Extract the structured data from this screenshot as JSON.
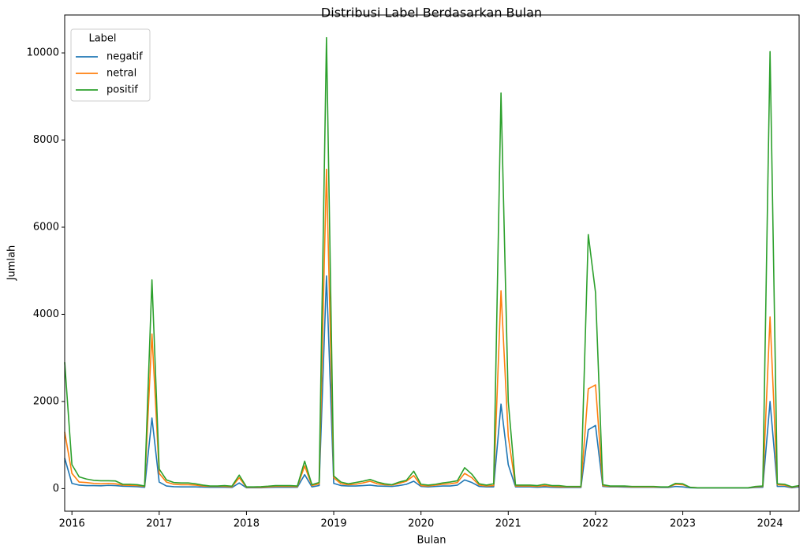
{
  "chart_data": {
    "type": "line",
    "title": "Distribusi Label Berdasarkan Bulan",
    "xlabel": "Bulan",
    "ylabel": "Jumlah",
    "legend_title": "Label",
    "legend": "upper left",
    "x": [
      2015.917,
      2016.0,
      2016.083,
      2016.167,
      2016.25,
      2016.333,
      2016.417,
      2016.5,
      2016.583,
      2016.667,
      2016.75,
      2016.833,
      2016.917,
      2017.0,
      2017.083,
      2017.167,
      2017.25,
      2017.333,
      2017.417,
      2017.5,
      2017.583,
      2017.667,
      2017.75,
      2017.833,
      2017.917,
      2018.0,
      2018.083,
      2018.167,
      2018.25,
      2018.333,
      2018.417,
      2018.5,
      2018.583,
      2018.667,
      2018.75,
      2018.833,
      2018.917,
      2019.0,
      2019.083,
      2019.167,
      2019.25,
      2019.333,
      2019.417,
      2019.5,
      2019.583,
      2019.667,
      2019.75,
      2019.833,
      2019.917,
      2020.0,
      2020.083,
      2020.167,
      2020.25,
      2020.333,
      2020.417,
      2020.5,
      2020.583,
      2020.667,
      2020.75,
      2020.833,
      2020.917,
      2021.0,
      2021.083,
      2021.167,
      2021.25,
      2021.333,
      2021.417,
      2021.5,
      2021.583,
      2021.667,
      2021.75,
      2021.833,
      2021.917,
      2022.0,
      2022.083,
      2022.167,
      2022.25,
      2022.333,
      2022.417,
      2022.5,
      2022.583,
      2022.667,
      2022.75,
      2022.833,
      2022.917,
      2023.0,
      2023.083,
      2023.167,
      2023.25,
      2023.333,
      2023.417,
      2023.5,
      2023.583,
      2023.667,
      2023.75,
      2023.833,
      2023.917,
      2024.0,
      2024.083,
      2024.167,
      2024.25,
      2024.333
    ],
    "series": [
      {
        "name": "negatif",
        "color": "#1f77b4",
        "values": [
          700,
          120,
          80,
          70,
          70,
          65,
          75,
          70,
          55,
          50,
          45,
          30,
          1620,
          150,
          60,
          45,
          40,
          40,
          40,
          35,
          30,
          30,
          30,
          25,
          130,
          20,
          20,
          20,
          25,
          30,
          30,
          30,
          30,
          320,
          40,
          70,
          4880,
          120,
          70,
          60,
          60,
          70,
          80,
          60,
          55,
          50,
          70,
          100,
          170,
          50,
          40,
          50,
          60,
          60,
          80,
          200,
          140,
          50,
          40,
          40,
          1940,
          550,
          40,
          40,
          40,
          30,
          40,
          30,
          25,
          25,
          25,
          25,
          1350,
          1450,
          50,
          40,
          40,
          35,
          30,
          30,
          30,
          30,
          25,
          25,
          50,
          40,
          20,
          15,
          15,
          15,
          15,
          15,
          15,
          15,
          15,
          25,
          30,
          2000,
          50,
          50,
          20,
          40
        ]
      },
      {
        "name": "netral",
        "color": "#ff7f0e",
        "values": [
          1300,
          350,
          150,
          140,
          120,
          110,
          120,
          110,
          80,
          75,
          70,
          50,
          3550,
          350,
          150,
          100,
          90,
          90,
          80,
          60,
          50,
          50,
          50,
          40,
          250,
          30,
          30,
          30,
          40,
          50,
          50,
          50,
          45,
          520,
          70,
          110,
          7330,
          250,
          110,
          90,
          100,
          130,
          170,
          110,
          90,
          80,
          120,
          170,
          300,
          70,
          60,
          80,
          100,
          110,
          140,
          350,
          250,
          80,
          60,
          70,
          4540,
          1200,
          60,
          60,
          60,
          50,
          70,
          50,
          45,
          40,
          40,
          40,
          2290,
          2380,
          70,
          50,
          50,
          50,
          40,
          40,
          40,
          40,
          35,
          35,
          100,
          90,
          30,
          20,
          20,
          20,
          20,
          20,
          20,
          20,
          20,
          40,
          50,
          3940,
          90,
          80,
          30,
          60
        ]
      },
      {
        "name": "positif",
        "color": "#2ca02c",
        "values": [
          2900,
          550,
          270,
          220,
          190,
          180,
          180,
          175,
          100,
          100,
          90,
          60,
          4790,
          450,
          200,
          140,
          130,
          130,
          110,
          80,
          60,
          60,
          70,
          55,
          310,
          40,
          40,
          45,
          55,
          70,
          70,
          70,
          60,
          630,
          90,
          140,
          10350,
          290,
          150,
          110,
          140,
          170,
          210,
          150,
          110,
          90,
          150,
          190,
          400,
          100,
          80,
          100,
          130,
          150,
          180,
          480,
          330,
          110,
          80,
          110,
          9080,
          2000,
          80,
          80,
          80,
          70,
          100,
          70,
          70,
          50,
          50,
          50,
          5830,
          4500,
          90,
          60,
          60,
          60,
          50,
          50,
          50,
          50,
          40,
          40,
          120,
          110,
          30,
          20,
          20,
          20,
          20,
          20,
          20,
          20,
          20,
          50,
          60,
          10030,
          110,
          100,
          40,
          70
        ]
      }
    ],
    "xlim": [
      2015.917,
      2024.333
    ],
    "xticks": [
      2016,
      2017,
      2018,
      2019,
      2020,
      2021,
      2022,
      2023,
      2024
    ],
    "ylim": [
      -518,
      10870
    ],
    "yticks": [
      0,
      2000,
      4000,
      6000,
      8000,
      10000
    ]
  }
}
